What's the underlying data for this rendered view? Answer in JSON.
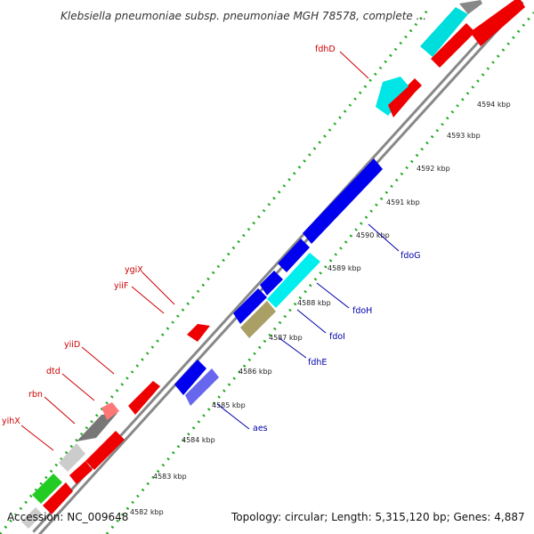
{
  "title": "Klebsiella pneumoniae subsp. pneumoniae MGH 78578, complete ...",
  "footer": {
    "accession": "Accession: NC_009648",
    "topology": "Topology: circular; Length: 5,315,120 bp; Genes: 4,887"
  },
  "scale_ticks": [
    {
      "label": "4582 kbp"
    },
    {
      "label": "4583 kbp"
    },
    {
      "label": "4584 kbp"
    },
    {
      "label": "4585 kbp"
    },
    {
      "label": "4586 kbp"
    },
    {
      "label": "4587 kbp"
    },
    {
      "label": "4588 kbp"
    },
    {
      "label": "4589 kbp"
    },
    {
      "label": "4590 kbp"
    },
    {
      "label": "4591 kbp"
    },
    {
      "label": "4592 kbp"
    },
    {
      "label": "4593 kbp"
    },
    {
      "label": "4594 kbp"
    }
  ],
  "gene_labels": [
    {
      "name": "fdhD",
      "strand": "minus",
      "color": "#cc0000"
    },
    {
      "name": "ygiX",
      "strand": "minus",
      "color": "#cc0000"
    },
    {
      "name": "yiiF",
      "strand": "minus",
      "color": "#cc0000"
    },
    {
      "name": "yiiD",
      "strand": "minus",
      "color": "#cc0000"
    },
    {
      "name": "dtd",
      "strand": "minus",
      "color": "#cc0000"
    },
    {
      "name": "rbn",
      "strand": "minus",
      "color": "#cc0000"
    },
    {
      "name": "yihX",
      "strand": "minus",
      "color": "#cc0000"
    },
    {
      "name": "fdoG",
      "strand": "plus",
      "color": "#0000aa"
    },
    {
      "name": "fdoH",
      "strand": "plus",
      "color": "#0000aa"
    },
    {
      "name": "fdoI",
      "strand": "plus",
      "color": "#0000aa"
    },
    {
      "name": "fdhE",
      "strand": "plus",
      "color": "#0000aa"
    },
    {
      "name": "aes",
      "strand": "plus",
      "color": "#0000aa"
    }
  ],
  "colors": {
    "backbone": "#888888",
    "minus_gene": "#ff0000",
    "plus_gene": "#0000ee",
    "cyan_gene": "#00eeee",
    "green_tick": "#22aa22"
  }
}
